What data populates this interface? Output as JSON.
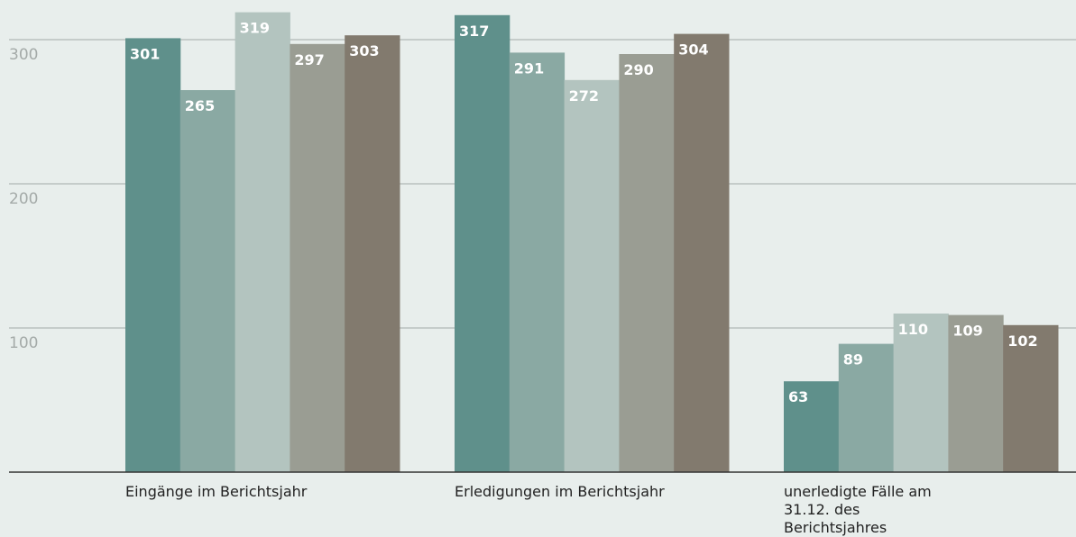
{
  "chart_data": {
    "type": "bar",
    "categories": [
      "Eingänge im Berichtsjahr",
      "Erledigungen im Berichtsjahr",
      "unerledigte Fälle am 31.12. des Berichtsjahres"
    ],
    "series": [
      {
        "color": "#5f908b",
        "values": [
          301,
          317,
          63
        ]
      },
      {
        "color": "#8aa9a3",
        "values": [
          265,
          291,
          89
        ]
      },
      {
        "color": "#b3c4bf",
        "values": [
          319,
          272,
          110
        ]
      },
      {
        "color": "#9a9d93",
        "values": [
          297,
          290,
          109
        ]
      },
      {
        "color": "#827a6e",
        "values": [
          303,
          304,
          102
        ]
      }
    ],
    "ylim": [
      0,
      325
    ],
    "yticks": [
      100,
      200,
      300
    ],
    "grid": true
  }
}
